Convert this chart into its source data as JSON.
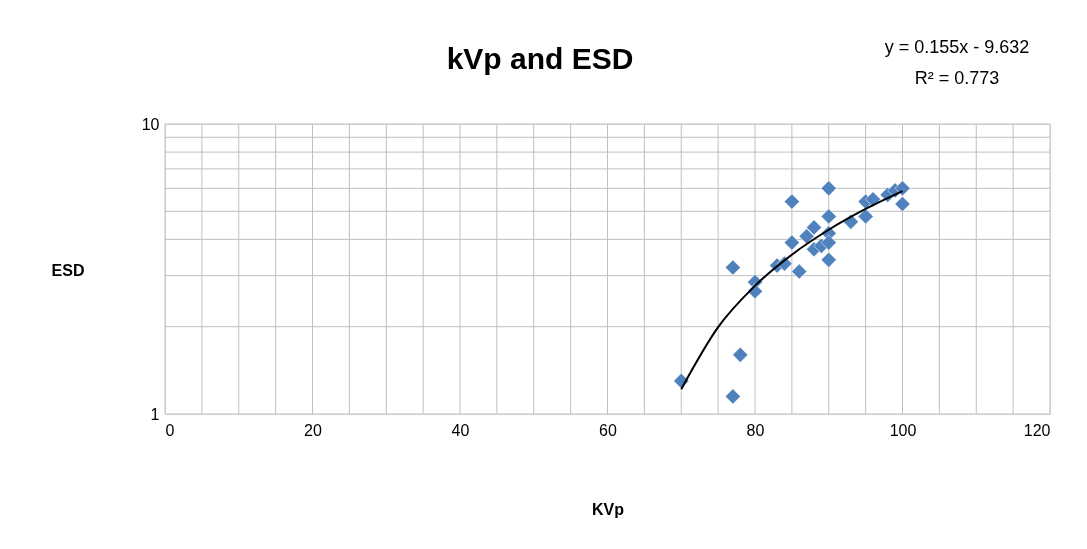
{
  "chart_data": {
    "type": "scatter",
    "title": "kVp and ESD",
    "xlabel": "KVp",
    "ylabel": "ESD",
    "annotations": [
      "y = 0.155x - 9.632",
      "R² = 0.773"
    ],
    "series": [
      {
        "color": "#4f81bd",
        "marker": "diamond",
        "x": [
          70,
          77,
          77,
          78,
          80,
          80,
          83,
          84,
          85,
          85,
          86,
          87,
          88,
          88,
          89,
          90,
          90,
          90,
          90,
          90,
          93,
          95,
          95,
          96,
          98,
          99,
          100,
          100
        ],
        "values": [
          1.3,
          1.15,
          3.2,
          1.6,
          2.85,
          2.65,
          3.25,
          3.3,
          5.4,
          3.9,
          3.1,
          4.1,
          4.4,
          3.7,
          3.8,
          6.0,
          4.8,
          4.2,
          3.9,
          3.4,
          4.6,
          5.4,
          4.8,
          5.5,
          5.7,
          5.9,
          6.0,
          5.3
        ]
      },
      {
        "type": "line",
        "color": "#000000",
        "marker": "none",
        "x": [
          70,
          75,
          80,
          85,
          90,
          95,
          100
        ],
        "values": [
          1.218,
          1.993,
          2.768,
          3.543,
          4.318,
          5.093,
          5.868
        ]
      }
    ],
    "log": "y",
    "xlim": [
      0,
      120
    ],
    "ylim": [
      1,
      10
    ],
    "xticks": [
      0,
      {
        "value": 5,
        "label": null
      },
      {
        "value": 10,
        "label": null
      },
      {
        "value": 15,
        "label": null
      },
      20,
      {
        "value": 25,
        "label": null
      },
      {
        "value": 30,
        "label": null
      },
      {
        "value": 35,
        "label": null
      },
      40,
      {
        "value": 45,
        "label": null
      },
      {
        "value": 50,
        "label": null
      },
      {
        "value": 55,
        "label": null
      },
      60,
      {
        "value": 65,
        "label": null
      },
      {
        "value": 70,
        "label": null
      },
      {
        "value": 75,
        "label": null
      },
      80,
      {
        "value": 85,
        "label": null
      },
      {
        "value": 90,
        "label": null
      },
      {
        "value": 95,
        "label": null
      },
      100,
      {
        "value": 105,
        "label": null
      },
      {
        "value": 110,
        "label": null
      },
      {
        "value": 115,
        "label": null
      },
      120
    ],
    "yticks": [
      1,
      {
        "value": 2,
        "label": null
      },
      {
        "value": 3,
        "label": null
      },
      {
        "value": 4,
        "label": null
      },
      {
        "value": 5,
        "label": null
      },
      {
        "value": 6,
        "label": null
      },
      {
        "value": 7,
        "label": null
      },
      {
        "value": 8,
        "label": null
      },
      {
        "value": 9,
        "label": null
      },
      10
    ],
    "grid": true,
    "legend": false
  }
}
